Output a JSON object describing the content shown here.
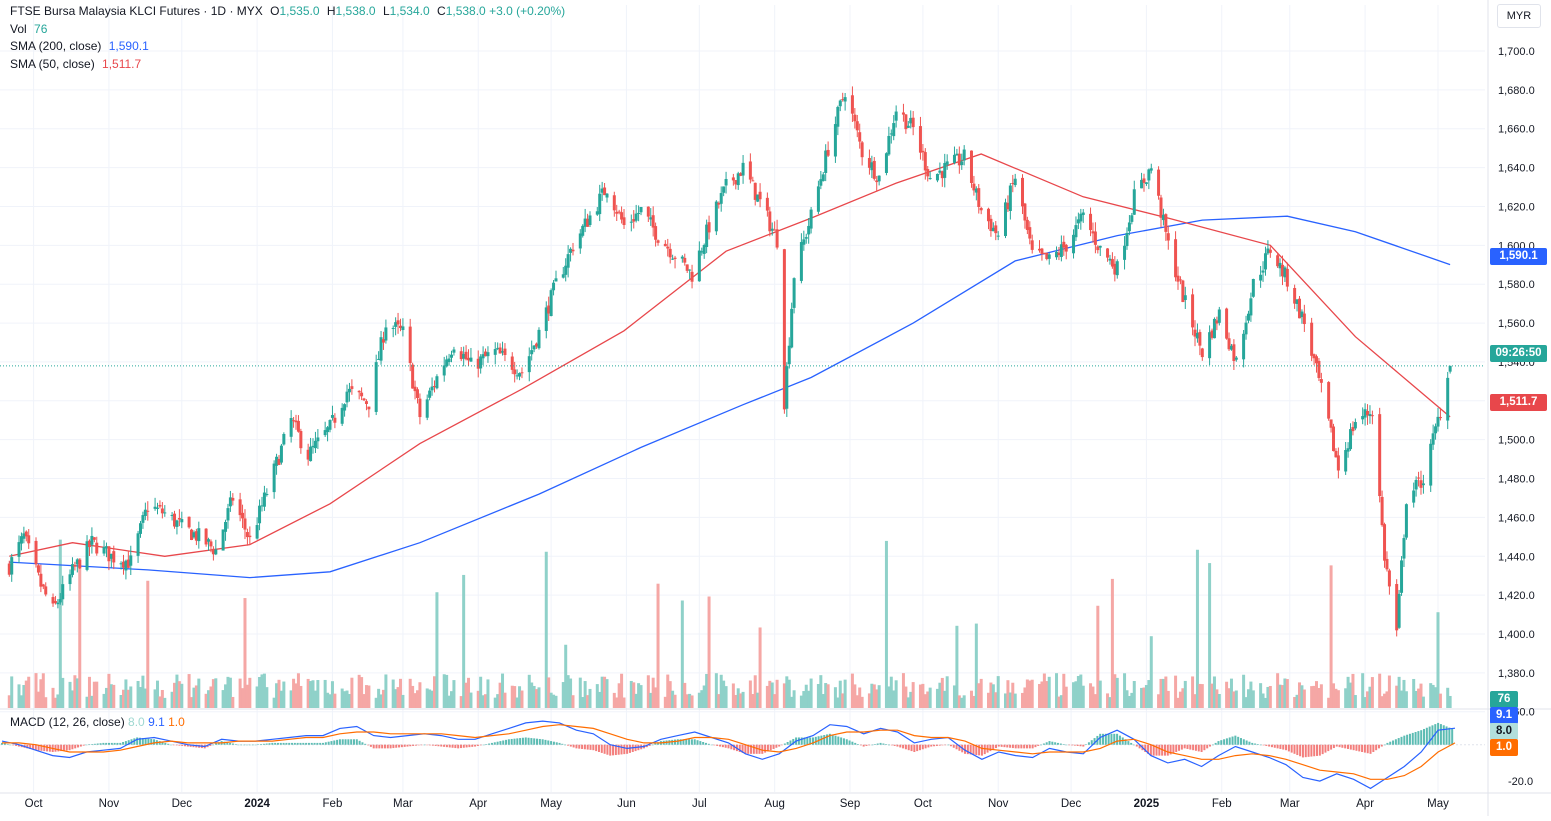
{
  "symbol": {
    "name": "FTSE Bursa Malaysia KLCI Futures",
    "interval": "1D",
    "exchange": "MYX",
    "open_label": "O",
    "open": "1,535.0",
    "high_label": "H",
    "high": "1,538.0",
    "low_label": "L",
    "low": "1,534.0",
    "close_label": "C",
    "close": "1,538.0",
    "change": "+3.0 (+0.20%)",
    "sep": "·"
  },
  "indicators": {
    "vol_label": "Vol",
    "vol_value": "76",
    "sma200_label": "SMA (200, close)",
    "sma200_value": "1,590.1",
    "sma50_label": "SMA (50, close)",
    "sma50_value": "1,511.7",
    "macd_label": "MACD (12, 26, close)",
    "macd_hist": "8.0",
    "macd_line": "9.1",
    "macd_signal": "1.0"
  },
  "currency_button": "MYR",
  "price_tags": {
    "sma200": "1,590.1",
    "countdown": "09:26:50",
    "sma50": "1,511.7",
    "volume": "76",
    "macd_line": "9.1",
    "macd_hist": "8.0",
    "macd_signal": "1.0",
    "macd_axis": "-20.0"
  },
  "colors": {
    "up": "#26a69a",
    "down": "#ef5350",
    "vol_up": "#8fd1c9",
    "vol_down": "#f5a7a5",
    "sma200": "#2962ff",
    "sma50": "#e8474b",
    "macd_line": "#2962ff",
    "macd_signal": "#ff6d00",
    "countdown": "#26a69a",
    "grid": "#f0f3fa"
  },
  "chart_data": {
    "type": "candlestick",
    "y_unit": "MYR",
    "ylim": [
      1340,
      1715
    ],
    "y_ticks": [
      "1,360.0",
      "1,380.0",
      "1,400.0",
      "1,420.0",
      "1,440.0",
      "1,460.0",
      "1,480.0",
      "1,500.0",
      "1,520.0",
      "1,540.0",
      "1,560.0",
      "1,580.0",
      "1,600.0",
      "1,620.0",
      "1,640.0",
      "1,660.0",
      "1,680.0",
      "1,700.0"
    ],
    "x_labels": [
      "Oct",
      "Nov",
      "Dec",
      "2024",
      "Feb",
      "Mar",
      "Apr",
      "May",
      "Jun",
      "Jul",
      "Aug",
      "Sep",
      "Oct",
      "Nov",
      "Dec",
      "2025",
      "Feb",
      "Mar",
      "Apr",
      "May"
    ],
    "bold_x_labels": [
      "2024",
      "2025"
    ],
    "grid": true,
    "last_price": 1538.0,
    "close_series": [
      {
        "date": "2023-09-21",
        "close": 1435
      },
      {
        "date": "2023-09-27",
        "close": 1450
      },
      {
        "date": "2023-10-04",
        "close": 1425
      },
      {
        "date": "2023-10-09",
        "close": 1412
      },
      {
        "date": "2023-10-17",
        "close": 1432
      },
      {
        "date": "2023-10-25",
        "close": 1447
      },
      {
        "date": "2023-11-02",
        "close": 1440
      },
      {
        "date": "2023-11-10",
        "close": 1437
      },
      {
        "date": "2023-11-17",
        "close": 1466
      },
      {
        "date": "2023-11-24",
        "close": 1462
      },
      {
        "date": "2023-12-01",
        "close": 1455
      },
      {
        "date": "2023-12-08",
        "close": 1450
      },
      {
        "date": "2023-12-15",
        "close": 1443
      },
      {
        "date": "2023-12-22",
        "close": 1470
      },
      {
        "date": "2023-12-29",
        "close": 1448
      },
      {
        "date": "2024-01-05",
        "close": 1473
      },
      {
        "date": "2024-01-15",
        "close": 1510
      },
      {
        "date": "2024-01-22",
        "close": 1492
      },
      {
        "date": "2024-01-31",
        "close": 1506
      },
      {
        "date": "2024-02-07",
        "close": 1525
      },
      {
        "date": "2024-02-16",
        "close": 1519
      },
      {
        "date": "2024-02-23",
        "close": 1560
      },
      {
        "date": "2024-03-01",
        "close": 1555
      },
      {
        "date": "2024-03-08",
        "close": 1512
      },
      {
        "date": "2024-03-15",
        "close": 1532
      },
      {
        "date": "2024-03-22",
        "close": 1550
      },
      {
        "date": "2024-03-29",
        "close": 1538
      },
      {
        "date": "2024-04-08",
        "close": 1545
      },
      {
        "date": "2024-04-19",
        "close": 1535
      },
      {
        "date": "2024-04-26",
        "close": 1555
      },
      {
        "date": "2024-05-03",
        "close": 1580
      },
      {
        "date": "2024-05-10",
        "close": 1600
      },
      {
        "date": "2024-05-17",
        "close": 1615
      },
      {
        "date": "2024-05-24",
        "close": 1630
      },
      {
        "date": "2024-05-31",
        "close": 1610
      },
      {
        "date": "2024-06-07",
        "close": 1618
      },
      {
        "date": "2024-06-14",
        "close": 1605
      },
      {
        "date": "2024-06-21",
        "close": 1595
      },
      {
        "date": "2024-06-28",
        "close": 1585
      },
      {
        "date": "2024-07-05",
        "close": 1610
      },
      {
        "date": "2024-07-12",
        "close": 1630
      },
      {
        "date": "2024-07-19",
        "close": 1640
      },
      {
        "date": "2024-07-26",
        "close": 1622
      },
      {
        "date": "2024-08-02",
        "close": 1603
      },
      {
        "date": "2024-08-05",
        "close": 1520
      },
      {
        "date": "2024-08-09",
        "close": 1585
      },
      {
        "date": "2024-08-16",
        "close": 1615
      },
      {
        "date": "2024-08-23",
        "close": 1650
      },
      {
        "date": "2024-08-30",
        "close": 1680
      },
      {
        "date": "2024-09-06",
        "close": 1648
      },
      {
        "date": "2024-09-13",
        "close": 1635
      },
      {
        "date": "2024-09-20",
        "close": 1670
      },
      {
        "date": "2024-09-27",
        "close": 1660
      },
      {
        "date": "2024-10-04",
        "close": 1635
      },
      {
        "date": "2024-10-11",
        "close": 1640
      },
      {
        "date": "2024-10-18",
        "close": 1645
      },
      {
        "date": "2024-10-25",
        "close": 1618
      },
      {
        "date": "2024-11-01",
        "close": 1605
      },
      {
        "date": "2024-11-08",
        "close": 1635
      },
      {
        "date": "2024-11-15",
        "close": 1595
      },
      {
        "date": "2024-11-22",
        "close": 1592
      },
      {
        "date": "2024-11-29",
        "close": 1600
      },
      {
        "date": "2024-12-06",
        "close": 1615
      },
      {
        "date": "2024-12-13",
        "close": 1598
      },
      {
        "date": "2024-12-20",
        "close": 1588
      },
      {
        "date": "2024-12-27",
        "close": 1625
      },
      {
        "date": "2025-01-03",
        "close": 1640
      },
      {
        "date": "2025-01-10",
        "close": 1600
      },
      {
        "date": "2025-01-17",
        "close": 1570
      },
      {
        "date": "2025-01-24",
        "close": 1545
      },
      {
        "date": "2025-01-31",
        "close": 1565
      },
      {
        "date": "2025-02-07",
        "close": 1540
      },
      {
        "date": "2025-02-14",
        "close": 1580
      },
      {
        "date": "2025-02-21",
        "close": 1598
      },
      {
        "date": "2025-02-28",
        "close": 1582
      },
      {
        "date": "2025-03-07",
        "close": 1560
      },
      {
        "date": "2025-03-14",
        "close": 1525
      },
      {
        "date": "2025-03-21",
        "close": 1485
      },
      {
        "date": "2025-03-28",
        "close": 1510
      },
      {
        "date": "2025-04-04",
        "close": 1515
      },
      {
        "date": "2025-04-09",
        "close": 1440
      },
      {
        "date": "2025-04-14",
        "close": 1400
      },
      {
        "date": "2025-04-18",
        "close": 1470
      },
      {
        "date": "2025-04-25",
        "close": 1480
      },
      {
        "date": "2025-05-02",
        "close": 1515
      },
      {
        "date": "2025-05-06",
        "close": 1538
      }
    ],
    "sma200_series": [
      {
        "date": "2023-09-21",
        "value": 1437
      },
      {
        "date": "2023-11-17",
        "value": 1433
      },
      {
        "date": "2023-12-29",
        "value": 1429
      },
      {
        "date": "2024-01-31",
        "value": 1432
      },
      {
        "date": "2024-03-08",
        "value": 1447
      },
      {
        "date": "2024-04-26",
        "value": 1472
      },
      {
        "date": "2024-06-07",
        "value": 1496
      },
      {
        "date": "2024-07-19",
        "value": 1518
      },
      {
        "date": "2024-08-16",
        "value": 1532
      },
      {
        "date": "2024-09-27",
        "value": 1560
      },
      {
        "date": "2024-11-08",
        "value": 1592
      },
      {
        "date": "2024-12-20",
        "value": 1605
      },
      {
        "date": "2025-01-24",
        "value": 1613
      },
      {
        "date": "2025-02-28",
        "value": 1615
      },
      {
        "date": "2025-03-28",
        "value": 1607
      },
      {
        "date": "2025-05-06",
        "value": 1590.1
      }
    ],
    "sma50_series": [
      {
        "date": "2023-09-21",
        "value": 1440
      },
      {
        "date": "2023-10-17",
        "value": 1447
      },
      {
        "date": "2023-11-24",
        "value": 1440
      },
      {
        "date": "2023-12-29",
        "value": 1446
      },
      {
        "date": "2024-01-31",
        "value": 1467
      },
      {
        "date": "2024-03-08",
        "value": 1498
      },
      {
        "date": "2024-04-19",
        "value": 1526
      },
      {
        "date": "2024-05-31",
        "value": 1556
      },
      {
        "date": "2024-07-12",
        "value": 1597
      },
      {
        "date": "2024-08-16",
        "value": 1614
      },
      {
        "date": "2024-09-20",
        "value": 1632
      },
      {
        "date": "2024-10-25",
        "value": 1647
      },
      {
        "date": "2024-12-06",
        "value": 1625
      },
      {
        "date": "2025-01-10",
        "value": 1614
      },
      {
        "date": "2025-02-21",
        "value": 1600
      },
      {
        "date": "2025-03-28",
        "value": 1553
      },
      {
        "date": "2025-05-06",
        "value": 1511.7
      }
    ],
    "macd": {
      "ylim": [
        -26,
        18
      ],
      "axis_tick": "-20.0",
      "line_series": [
        2,
        0,
        -3,
        -6,
        -7,
        -4,
        -3,
        -2,
        3,
        4,
        2,
        0,
        -1,
        3,
        2,
        2,
        3,
        4,
        5,
        5,
        9,
        10,
        5,
        4,
        5,
        6,
        5,
        3,
        3,
        6,
        9,
        12,
        13,
        12,
        8,
        6,
        0,
        -2,
        -1,
        3,
        5,
        7,
        4,
        1,
        -5,
        -8,
        -5,
        2,
        5,
        11,
        10,
        6,
        9,
        7,
        1,
        3,
        4,
        -3,
        -8,
        -4,
        -6,
        -7,
        -2,
        -4,
        -5,
        4,
        8,
        3,
        -6,
        -10,
        -8,
        -12,
        -6,
        -1,
        -4,
        -7,
        -11,
        -18,
        -20,
        -16,
        -19,
        -24,
        -18,
        -12,
        -4,
        8,
        9.1
      ],
      "signal_series": [
        1,
        1,
        0,
        -2,
        -4,
        -4,
        -4,
        -3,
        -1,
        1,
        2,
        1,
        1,
        1,
        2,
        2,
        2,
        3,
        4,
        4,
        6,
        7,
        7,
        6,
        6,
        6,
        6,
        5,
        4,
        5,
        6,
        8,
        10,
        11,
        10,
        9,
        6,
        3,
        1,
        1,
        2,
        4,
        4,
        3,
        0,
        -3,
        -4,
        -2,
        1,
        5,
        7,
        7,
        8,
        8,
        5,
        4,
        4,
        2,
        -2,
        -3,
        -4,
        -5,
        -4,
        -4,
        -4,
        -2,
        2,
        3,
        0,
        -4,
        -6,
        -8,
        -8,
        -6,
        -5,
        -6,
        -8,
        -11,
        -14,
        -15,
        -16,
        -19,
        -19,
        -17,
        -12,
        -4,
        1.0
      ]
    }
  }
}
